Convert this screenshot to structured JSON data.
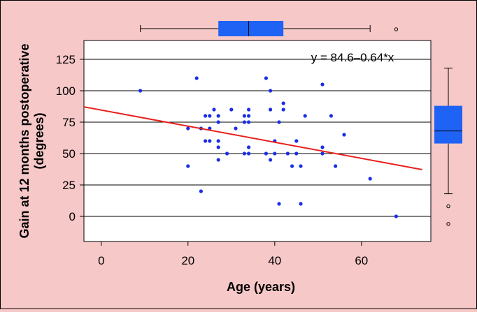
{
  "chart_data": {
    "type": "scatter",
    "xlabel": "Age (years)",
    "ylabel_line1": "Gain at 12 months postoperative",
    "ylabel_line2": "(degrees)",
    "annotation": "y = 84.6–0.64*x",
    "xlim": [
      -4,
      76
    ],
    "ylim": [
      -20,
      140
    ],
    "xticks": [
      "0",
      "20",
      "40",
      "60"
    ],
    "yticks": [
      "0",
      "25",
      "50",
      "75",
      "100",
      "125"
    ],
    "grid": "horizontal",
    "colors": {
      "points": "#1a2ee6",
      "fit_line": "#e8201c",
      "box_fill": "#1f63f5",
      "background": "#f7c8c8",
      "plot_bg": "#ffffff"
    },
    "points": [
      {
        "x": 9,
        "y": 100
      },
      {
        "x": 20,
        "y": 70
      },
      {
        "x": 20,
        "y": 40
      },
      {
        "x": 22,
        "y": 110
      },
      {
        "x": 23,
        "y": 70
      },
      {
        "x": 23,
        "y": 20
      },
      {
        "x": 24,
        "y": 80
      },
      {
        "x": 24,
        "y": 60
      },
      {
        "x": 25,
        "y": 80
      },
      {
        "x": 25,
        "y": 70
      },
      {
        "x": 25,
        "y": 60
      },
      {
        "x": 26,
        "y": 85
      },
      {
        "x": 27,
        "y": 80
      },
      {
        "x": 27,
        "y": 75
      },
      {
        "x": 27,
        "y": 60
      },
      {
        "x": 27,
        "y": 55
      },
      {
        "x": 27,
        "y": 45
      },
      {
        "x": 29,
        "y": 50
      },
      {
        "x": 30,
        "y": 85
      },
      {
        "x": 31,
        "y": 70
      },
      {
        "x": 33,
        "y": 80
      },
      {
        "x": 33,
        "y": 75
      },
      {
        "x": 33,
        "y": 50
      },
      {
        "x": 34,
        "y": 85
      },
      {
        "x": 34,
        "y": 80
      },
      {
        "x": 34,
        "y": 75
      },
      {
        "x": 34,
        "y": 55
      },
      {
        "x": 34,
        "y": 50
      },
      {
        "x": 38,
        "y": 110
      },
      {
        "x": 38,
        "y": 50
      },
      {
        "x": 39,
        "y": 100
      },
      {
        "x": 39,
        "y": 85
      },
      {
        "x": 39,
        "y": 45
      },
      {
        "x": 40,
        "y": 60
      },
      {
        "x": 40,
        "y": 50
      },
      {
        "x": 41,
        "y": 75
      },
      {
        "x": 41,
        "y": 10
      },
      {
        "x": 42,
        "y": 90
      },
      {
        "x": 42,
        "y": 85
      },
      {
        "x": 43,
        "y": 50
      },
      {
        "x": 44,
        "y": 40
      },
      {
        "x": 45,
        "y": 60
      },
      {
        "x": 45,
        "y": 50
      },
      {
        "x": 46,
        "y": 40
      },
      {
        "x": 46,
        "y": 10
      },
      {
        "x": 47,
        "y": 80
      },
      {
        "x": 51,
        "y": 105
      },
      {
        "x": 51,
        "y": 55
      },
      {
        "x": 51,
        "y": 50
      },
      {
        "x": 53,
        "y": 80
      },
      {
        "x": 54,
        "y": 40
      },
      {
        "x": 56,
        "y": 65
      },
      {
        "x": 62,
        "y": 30
      },
      {
        "x": 68,
        "y": 0
      }
    ],
    "fit": {
      "intercept": 84.6,
      "slope": -0.64,
      "x_range": [
        -4,
        74
      ]
    },
    "boxplot_x": {
      "whisker_low": 9,
      "q1": 27,
      "median": 34,
      "q3": 42,
      "whisker_high": 62,
      "outliers": [
        68
      ]
    },
    "boxplot_y": {
      "whisker_low": 18,
      "q1": 58,
      "median": 68,
      "q3": 88,
      "whisker_high": 118,
      "outliers": [
        8,
        -6
      ]
    }
  }
}
